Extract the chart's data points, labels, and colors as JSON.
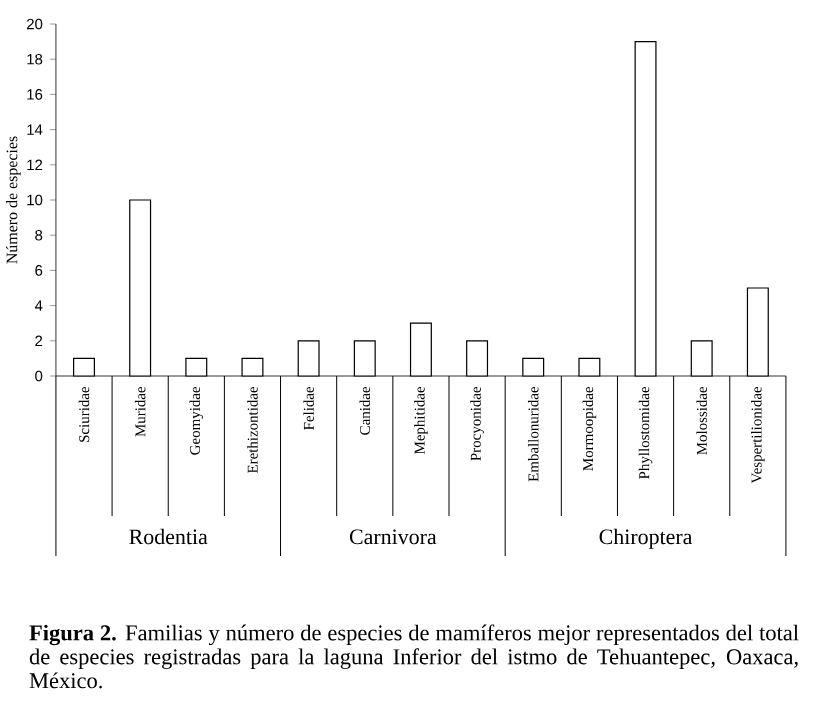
{
  "chart_data": {
    "type": "bar",
    "ylabel": "Número de especies",
    "categories": [
      "Sciuridae",
      "Muridae",
      "Geomyidae",
      "Erethizontidae",
      "Felidae",
      "Canidae",
      "Mephitidae",
      "Procyonidae",
      "Emballonuridae",
      "Mormoopidae",
      "Phyllostomidae",
      "Molossidae",
      "Vespertilionidae"
    ],
    "values": [
      1,
      10,
      1,
      1,
      2,
      2,
      3,
      2,
      1,
      1,
      19,
      2,
      5
    ],
    "color": "#ffffff",
    "ylim": [
      0,
      20
    ],
    "yticks": [
      0,
      2,
      4,
      6,
      8,
      10,
      12,
      14,
      16,
      18,
      20
    ],
    "grid": false,
    "annotations": [
      "Rodentia",
      "Carnivora",
      "Chiroptera",
      "**Figura 2.** Familias y número de especies de mamíferos mejor representados del total de especies registradas para la laguna Inferior del istmo de Tehuantepec, Oaxaca, México."
    ]
  }
}
